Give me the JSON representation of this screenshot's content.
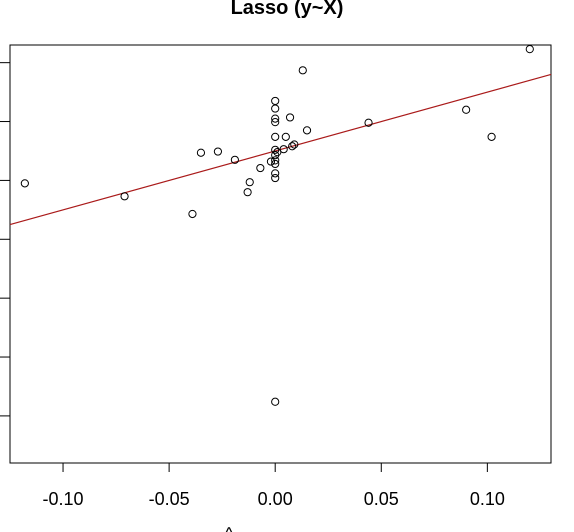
{
  "chart_data": {
    "type": "scatter",
    "title": "Lasso (y~X)",
    "xlabel": "^",
    "ylabel": "",
    "xlim": [
      -0.125,
      0.13
    ],
    "ylim": [
      -5.3,
      1.8
    ],
    "x_ticks": [
      -0.1,
      -0.05,
      0.0,
      0.05,
      0.1
    ],
    "x_tick_labels": [
      "-0.10",
      "-0.05",
      "0.00",
      "0.05",
      "0.10"
    ],
    "y_ticks": [
      -4.5,
      -3.5,
      -2.5,
      -1.5,
      -0.5,
      0.5,
      1.5
    ],
    "grid": false,
    "legend": "none",
    "point_color": "#000000",
    "line_color": "#aa1a1a",
    "fit_line": {
      "slope": 10.0,
      "intercept": 0.0
    },
    "points": [
      {
        "x": -0.118,
        "y": -0.55
      },
      {
        "x": -0.071,
        "y": -0.77
      },
      {
        "x": -0.039,
        "y": -1.07
      },
      {
        "x": -0.035,
        "y": -0.03
      },
      {
        "x": -0.027,
        "y": -0.01
      },
      {
        "x": -0.019,
        "y": -0.15
      },
      {
        "x": -0.012,
        "y": -0.53
      },
      {
        "x": -0.013,
        "y": -0.7
      },
      {
        "x": -0.007,
        "y": -0.29
      },
      {
        "x": -0.002,
        "y": -0.18
      },
      {
        "x": 0.0,
        "y": 0.85
      },
      {
        "x": 0.0,
        "y": 0.72
      },
      {
        "x": 0.0,
        "y": 0.55
      },
      {
        "x": 0.0,
        "y": 0.49
      },
      {
        "x": 0.0,
        "y": 0.24
      },
      {
        "x": 0.0,
        "y": 0.02
      },
      {
        "x": 0.001,
        "y": -0.02
      },
      {
        "x": 0.0,
        "y": -0.07
      },
      {
        "x": 0.0,
        "y": -0.16
      },
      {
        "x": 0.0,
        "y": -0.22
      },
      {
        "x": 0.0,
        "y": -0.38
      },
      {
        "x": 0.0,
        "y": -0.46
      },
      {
        "x": 0.0,
        "y": -4.26
      },
      {
        "x": 0.004,
        "y": 0.03
      },
      {
        "x": 0.005,
        "y": 0.24
      },
      {
        "x": 0.007,
        "y": 0.57
      },
      {
        "x": 0.008,
        "y": 0.08
      },
      {
        "x": 0.009,
        "y": 0.11
      },
      {
        "x": 0.013,
        "y": 1.37
      },
      {
        "x": 0.015,
        "y": 0.35
      },
      {
        "x": 0.044,
        "y": 0.48
      },
      {
        "x": 0.09,
        "y": 0.7
      },
      {
        "x": 0.102,
        "y": 0.24
      },
      {
        "x": 0.12,
        "y": 1.73
      }
    ]
  }
}
